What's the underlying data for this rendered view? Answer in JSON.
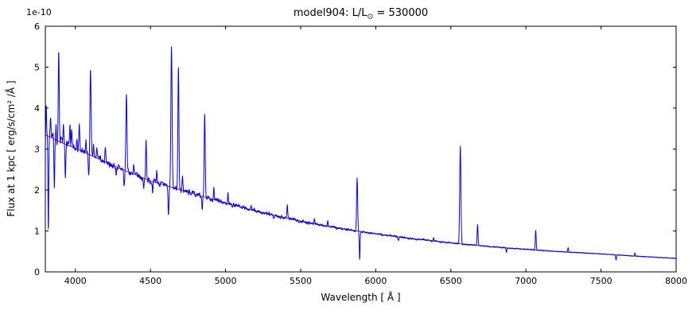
{
  "figure": {
    "title": {
      "prefix": "model904: L/L",
      "sub": "⊙",
      "suffix": " = 530000"
    },
    "xlabel": "Wavelength [ Å ]",
    "ylabel": "Flux at 1 kpc [ erg/s/cm² /Å ]",
    "offset_text": "1e-10"
  },
  "chart_data": {
    "type": "line",
    "title": "model904: L/L⊙ = 530000",
    "xlabel": "Wavelength [ Å ]",
    "ylabel": "Flux at 1 kpc [ erg/s/cm² /Å ]",
    "y_offset_factor": "1e-10",
    "xlim": [
      3800,
      8000
    ],
    "ylim": [
      0,
      6
    ],
    "x_ticks": [
      4000,
      4500,
      5000,
      5500,
      6000,
      6500,
      7000,
      7500,
      8000
    ],
    "y_ticks": [
      0,
      1,
      2,
      3,
      4,
      5,
      6
    ],
    "grid": false,
    "legend": null,
    "frame_color": "#000000",
    "series": [
      {
        "name": "spectrum",
        "role": "spectrum",
        "color": "#0000ff",
        "width": 1
      },
      {
        "name": "continuum",
        "role": "continuum",
        "color": "#d40000",
        "width": 1
      }
    ],
    "continuum": {
      "x": [
        3800,
        3900,
        4000,
        4250,
        4500,
        4750,
        5000,
        5250,
        5500,
        5750,
        6000,
        6250,
        6500,
        6750,
        7000,
        7250,
        7500,
        7750,
        8000
      ],
      "y": [
        3.35,
        3.17,
        3.02,
        2.6,
        2.22,
        1.95,
        1.68,
        1.44,
        1.24,
        1.07,
        0.93,
        0.81,
        0.71,
        0.62,
        0.55,
        0.49,
        0.44,
        0.38,
        0.33
      ]
    },
    "spectral_lines_format": "center_angstrom, amplitude_above_continuum_1e-10, sigma_angstrom",
    "spectral_lines": [
      [
        3806,
        0.7,
        2.5
      ],
      [
        3820,
        -2.3,
        2.5
      ],
      [
        3835,
        0.62,
        2.5
      ],
      [
        3860,
        -1.1,
        2.5
      ],
      [
        3871,
        0.3,
        2.0
      ],
      [
        3889,
        2.25,
        3.0
      ],
      [
        3920,
        0.45,
        2.5
      ],
      [
        3933,
        -0.85,
        2.5
      ],
      [
        3964,
        0.5,
        2.5
      ],
      [
        3975,
        0.35,
        2.5
      ],
      [
        4009,
        0.3,
        2.5
      ],
      [
        4026,
        0.58,
        3.0
      ],
      [
        4070,
        0.25,
        2.5
      ],
      [
        4089,
        -0.55,
        3.0
      ],
      [
        4101,
        2.15,
        3.5
      ],
      [
        4121,
        0.25,
        2.5
      ],
      [
        4144,
        0.28,
        2.5
      ],
      [
        4200,
        0.38,
        3.0
      ],
      [
        4271,
        -0.2,
        2.5
      ],
      [
        4325,
        -0.4,
        3.0
      ],
      [
        4340,
        1.88,
        3.5
      ],
      [
        4388,
        0.22,
        2.5
      ],
      [
        4455,
        -0.3,
        2.5
      ],
      [
        4471,
        0.95,
        3.0
      ],
      [
        4515,
        -0.25,
        2.5
      ],
      [
        4542,
        0.3,
        2.5
      ],
      [
        4620,
        -0.75,
        3.0
      ],
      [
        4640,
        3.45,
        4.0
      ],
      [
        4686,
        2.95,
        3.5
      ],
      [
        4713,
        0.32,
        2.5
      ],
      [
        4845,
        -0.35,
        2.5
      ],
      [
        4861,
        2.02,
        3.5
      ],
      [
        4922,
        0.3,
        2.5
      ],
      [
        5016,
        0.26,
        2.5
      ],
      [
        5169,
        0.12,
        2.5
      ],
      [
        5320,
        -0.1,
        2.5
      ],
      [
        5411,
        0.3,
        3.0
      ],
      [
        5592,
        0.12,
        2.5
      ],
      [
        5680,
        0.1,
        2.5
      ],
      [
        5876,
        1.3,
        3.5
      ],
      [
        5893,
        -0.72,
        2.5
      ],
      [
        6150,
        -0.08,
        3.0
      ],
      [
        6385,
        0.08,
        2.5
      ],
      [
        6563,
        2.38,
        4.0
      ],
      [
        6678,
        0.53,
        3.0
      ],
      [
        6870,
        -0.12,
        2.5
      ],
      [
        7065,
        0.48,
        3.0
      ],
      [
        7281,
        0.12,
        2.5
      ],
      [
        7600,
        -0.12,
        3.0
      ],
      [
        7726,
        0.08,
        2.5
      ]
    ],
    "noise": {
      "seed": 7,
      "base": 0.012,
      "scale": 0.13,
      "exponent": 2,
      "blue_extra": 0.08,
      "blue_cutoff": 4000
    }
  }
}
